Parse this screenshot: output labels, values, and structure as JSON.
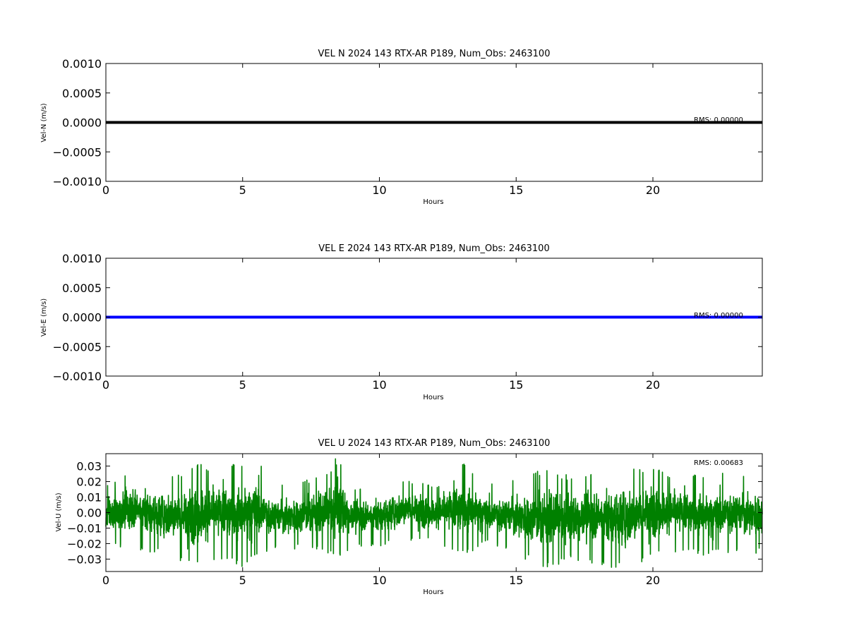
{
  "chart_data": [
    {
      "type": "line",
      "title": "VEL N 2024 143 RTX-AR  P189, Num_Obs: 2463100",
      "xlabel": "Hours",
      "ylabel": "Vel-N (m/s)",
      "xlim": [
        0,
        24
      ],
      "ylim": [
        -0.001,
        0.001
      ],
      "xticks": [
        0,
        5,
        10,
        15,
        20
      ],
      "xtick_labels": [
        "0",
        "5",
        "10",
        "15",
        "20"
      ],
      "yticks": [
        0.001,
        0.0005,
        0,
        -0.0005,
        -0.001
      ],
      "ytick_labels": [
        "0.0010",
        "0.0005",
        "0.0000",
        "−0.0005",
        "−0.0010"
      ],
      "grid": false,
      "annotation": "RMS:  0.00000",
      "annotation_color": "#0000ff",
      "series": [
        {
          "color": "#000000",
          "noise": "none",
          "x": [
            0,
            24
          ],
          "y": [
            0,
            0
          ]
        }
      ]
    },
    {
      "type": "line",
      "title": "VEL E 2024 143 RTX-AR  P189, Num_Obs: 2463100",
      "xlabel": "Hours",
      "ylabel": "Vel-E (m/s)",
      "xlim": [
        0,
        24
      ],
      "ylim": [
        -0.001,
        0.001
      ],
      "xticks": [
        0,
        5,
        10,
        15,
        20
      ],
      "xtick_labels": [
        "0",
        "5",
        "10",
        "15",
        "20"
      ],
      "yticks": [
        0.001,
        0.0005,
        0,
        -0.0005,
        -0.001
      ],
      "ytick_labels": [
        "0.0010",
        "0.0005",
        "0.0000",
        "−0.0005",
        "−0.0010"
      ],
      "grid": false,
      "annotation": "RMS:  0.00000",
      "annotation_color": "#0000ff",
      "series": [
        {
          "color": "#0000ff",
          "noise": "none",
          "x": [
            0,
            24
          ],
          "y": [
            0,
            0
          ]
        }
      ]
    },
    {
      "type": "line",
      "title": "VEL U 2024 143 RTX-AR  P189, Num_Obs: 2463100",
      "xlabel": "Hours",
      "ylabel": "Vel-U (m/s)",
      "xlim": [
        0,
        24
      ],
      "ylim": [
        -0.038,
        0.038
      ],
      "xticks": [
        0,
        5,
        10,
        15,
        20
      ],
      "xtick_labels": [
        "0",
        "5",
        "10",
        "15",
        "20"
      ],
      "yticks": [
        0.03,
        0.02,
        0.01,
        0,
        -0.01,
        -0.02,
        -0.03
      ],
      "ytick_labels": [
        "0.03",
        "0.02",
        "0.01",
        "0.00",
        "−0.01",
        "−0.02",
        "−0.03"
      ],
      "grid": false,
      "annotation": "RMS:  0.00683",
      "annotation_color": "#0000ff",
      "series": [
        {
          "color": "#008000",
          "noise": "dense",
          "rms": 0.00683,
          "x": [
            0,
            1,
            2,
            3,
            3.5,
            4,
            5,
            5.5,
            6,
            7,
            8,
            8.5,
            9,
            10,
            11,
            12,
            13,
            14,
            15,
            16,
            17,
            18,
            19,
            20,
            21,
            22,
            23,
            24
          ],
          "ymax": [
            0.018,
            0.03,
            0.025,
            0.028,
            0.033,
            0.03,
            0.032,
            0.036,
            0.02,
            0.02,
            0.024,
            0.038,
            0.017,
            0.019,
            0.023,
            0.017,
            0.033,
            0.018,
            0.024,
            0.028,
            0.024,
            0.03,
            0.033,
            0.029,
            0.025,
            0.024,
            0.027,
            0.025
          ],
          "ymin": [
            -0.02,
            -0.024,
            -0.027,
            -0.033,
            -0.036,
            -0.03,
            -0.035,
            -0.031,
            -0.024,
            -0.024,
            -0.025,
            -0.03,
            -0.022,
            -0.022,
            -0.018,
            -0.018,
            -0.028,
            -0.02,
            -0.027,
            -0.038,
            -0.03,
            -0.034,
            -0.038,
            -0.028,
            -0.025,
            -0.028,
            -0.026,
            -0.027
          ]
        }
      ]
    }
  ]
}
